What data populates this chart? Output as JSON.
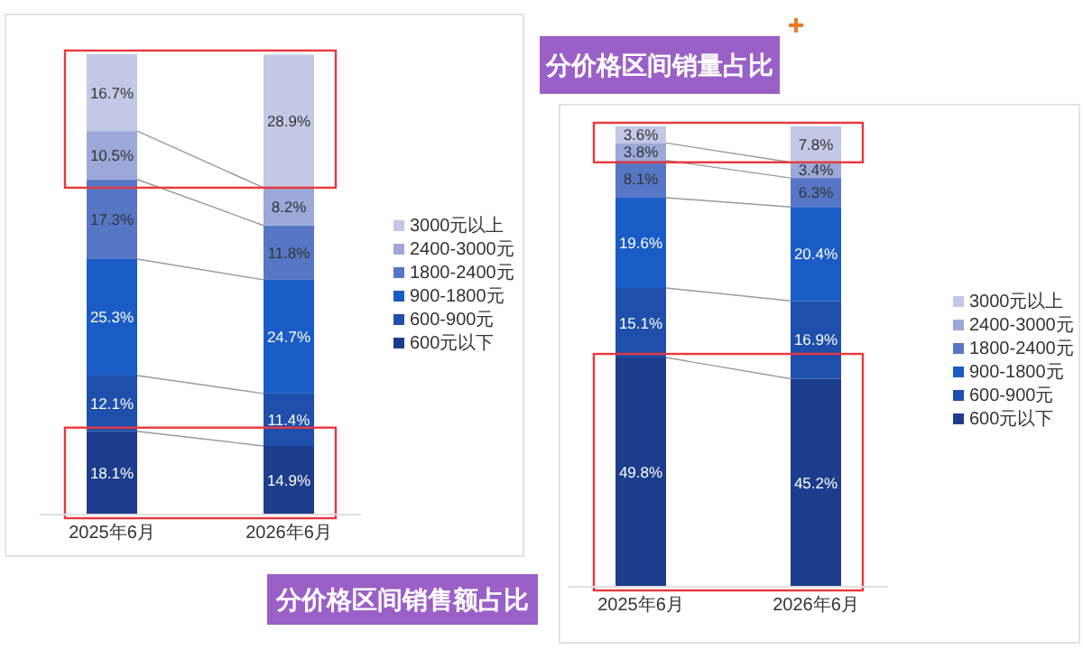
{
  "chart_data": [
    {
      "type": "bar",
      "stacked": true,
      "legend": "right",
      "title": "分价格区间销售额占比",
      "categories": [
        "2025年6月",
        "2026年6月"
      ],
      "series": [
        {
          "name": "600元以下",
          "color": "#1c3d8c",
          "values": [
            18.1,
            14.9
          ],
          "value_labels": [
            "18.1%",
            "14.9%"
          ]
        },
        {
          "name": "600-900元",
          "color": "#1d4fab",
          "values": [
            12.1,
            11.4
          ],
          "value_labels": [
            "12.1%",
            "11.4%"
          ]
        },
        {
          "name": "900-1800元",
          "color": "#1a5cc6",
          "values": [
            25.3,
            24.7
          ],
          "value_labels": [
            "25.3%",
            "24.7%"
          ]
        },
        {
          "name": "1800-2400元",
          "color": "#5677c6",
          "values": [
            17.3,
            11.8
          ],
          "value_labels": [
            "17.3%",
            "11.8%"
          ]
        },
        {
          "name": "2400-3000元",
          "color": "#9ba8d8",
          "values": [
            10.5,
            8.2
          ],
          "value_labels": [
            "10.5%",
            "8.2%"
          ]
        },
        {
          "name": "3000元以上",
          "color": "#c3c8e6",
          "values": [
            16.7,
            28.9
          ],
          "value_labels": [
            "16.7%",
            "28.9%"
          ]
        }
      ]
    },
    {
      "type": "bar",
      "stacked": true,
      "legend": "right",
      "title": "分价格区间销量占比",
      "categories": [
        "2025年6月",
        "2026年6月"
      ],
      "series": [
        {
          "name": "600元以下",
          "color": "#1c3d8c",
          "values": [
            49.8,
            45.2
          ],
          "value_labels": [
            "49.8%",
            "45.2%"
          ]
        },
        {
          "name": "600-900元",
          "color": "#1d4fab",
          "values": [
            15.1,
            16.9
          ],
          "value_labels": [
            "15.1%",
            "16.9%"
          ]
        },
        {
          "name": "900-1800元",
          "color": "#1a5cc6",
          "values": [
            19.6,
            20.4
          ],
          "value_labels": [
            "19.6%",
            "20.4%"
          ]
        },
        {
          "name": "1800-2400元",
          "color": "#5677c6",
          "values": [
            8.1,
            6.3
          ],
          "value_labels": [
            "8.1%",
            "6.3%"
          ]
        },
        {
          "name": "2400-3000元",
          "color": "#9ba8d8",
          "values": [
            3.8,
            3.4
          ],
          "value_labels": [
            "3.8%",
            "3.4%"
          ]
        },
        {
          "name": "3000元以上",
          "color": "#c3c8e6",
          "values": [
            3.6,
            7.8
          ],
          "value_labels": [
            "3.6%",
            "7.8%"
          ]
        }
      ]
    }
  ]
}
